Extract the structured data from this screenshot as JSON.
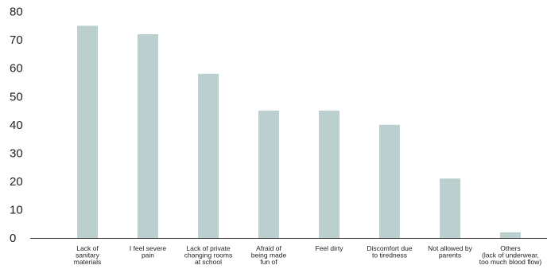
{
  "chart_data": {
    "type": "bar",
    "categories": [
      [
        "Lack of",
        "sanitary",
        "materials"
      ],
      [
        "I feel severe",
        "pain"
      ],
      [
        "Lack of private",
        "changing rooms",
        "at school"
      ],
      [
        "Afraid of",
        "being made",
        "fun of"
      ],
      [
        "Feel dirty"
      ],
      [
        "Discomfort due",
        "to tiredness"
      ],
      [
        "Not allowed by",
        "parents"
      ],
      [
        "Others",
        "(lack of underwear,",
        "too much blood flow)"
      ]
    ],
    "values": [
      75,
      72,
      58,
      45,
      45,
      40,
      21,
      2
    ],
    "ylim": [
      0,
      80
    ],
    "yticks": [
      0,
      10,
      20,
      30,
      40,
      50,
      60,
      70,
      80
    ],
    "bar_color": "#bccfcf",
    "axis_color": "#333333",
    "grid": false,
    "legend": "none"
  }
}
